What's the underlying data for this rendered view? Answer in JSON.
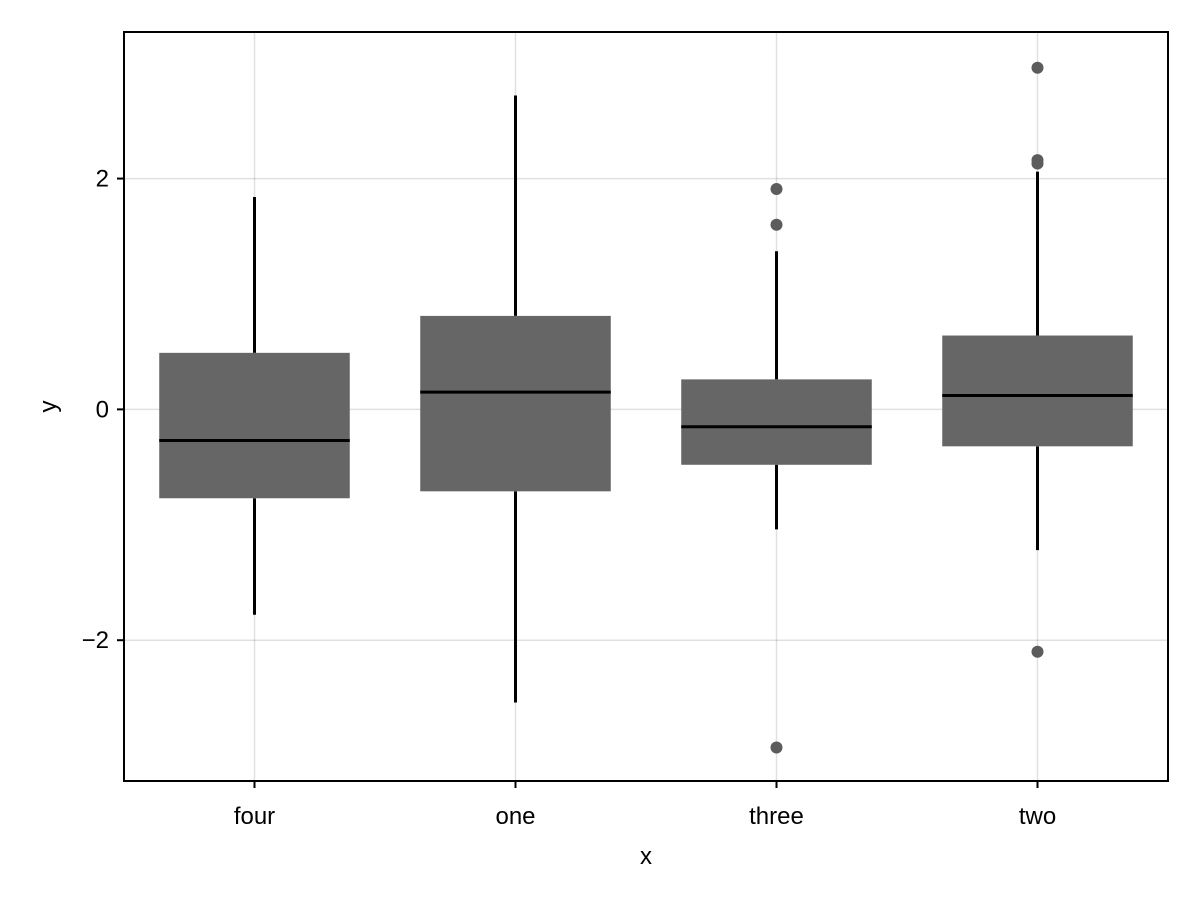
{
  "chart_data": {
    "type": "boxplot",
    "title": "",
    "xlabel": "x",
    "ylabel": "y",
    "categories": [
      "four",
      "one",
      "three",
      "two"
    ],
    "ylim": [
      -3.22,
      3.27
    ],
    "yticks": [
      -2,
      0,
      2
    ],
    "ytick_labels": [
      "−2",
      "0",
      "2"
    ],
    "grid": true,
    "box_color": "#666666",
    "line_color": "#000000",
    "outlier_color": "#5c5c5c",
    "boxes": [
      {
        "category": "four",
        "whisker_low": -1.78,
        "q1": -0.77,
        "median": -0.27,
        "q3": 0.49,
        "whisker_high": 1.84,
        "outliers": []
      },
      {
        "category": "one",
        "whisker_low": -2.54,
        "q1": -0.71,
        "median": 0.15,
        "q3": 0.81,
        "whisker_high": 2.72,
        "outliers": []
      },
      {
        "category": "three",
        "whisker_low": -1.04,
        "q1": -0.48,
        "median": -0.15,
        "q3": 0.26,
        "whisker_high": 1.37,
        "outliers": [
          1.91,
          1.6,
          -2.93
        ]
      },
      {
        "category": "two",
        "whisker_low": -1.22,
        "q1": -0.32,
        "median": 0.12,
        "q3": 0.64,
        "whisker_high": 2.06,
        "outliers": [
          2.96,
          2.16,
          2.13,
          -2.1
        ]
      }
    ]
  }
}
